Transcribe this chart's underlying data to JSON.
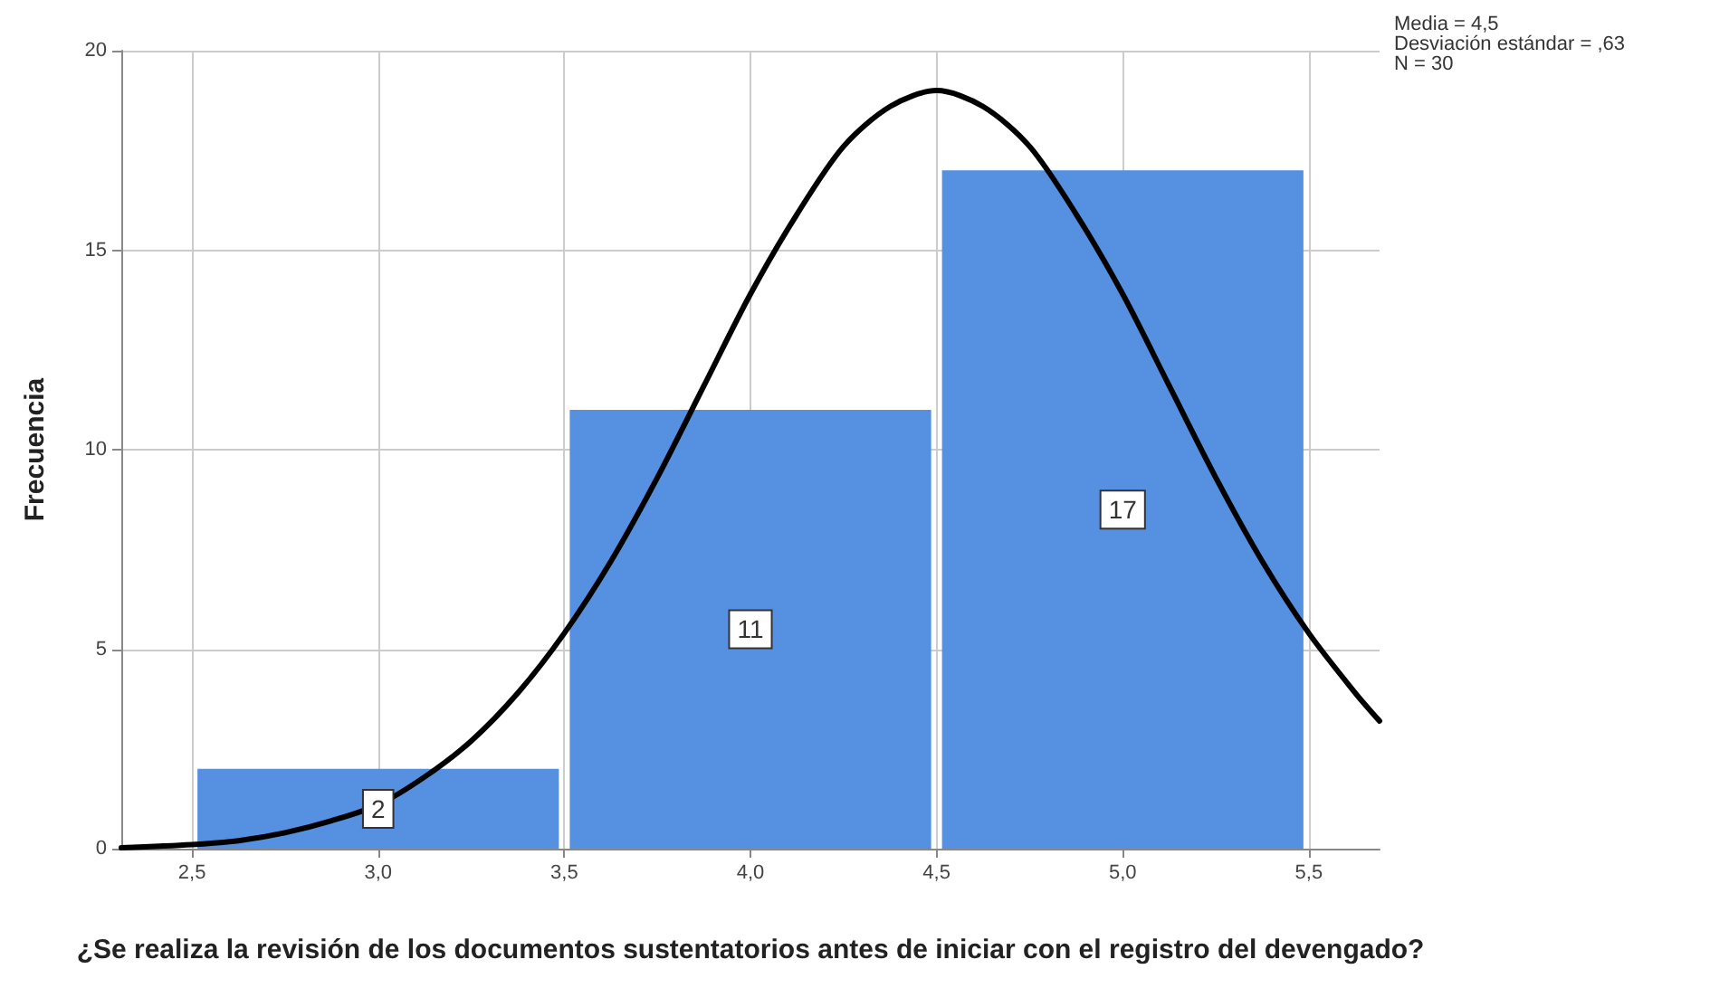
{
  "chart_data": {
    "type": "histogram",
    "xlabel": "¿Se realiza la revisión de los documentos sustentatorios antes de iniciar con el registro del devengado?",
    "ylabel": "Frecuencia",
    "bins": [
      2.5,
      3.5,
      4.5,
      5.5
    ],
    "values": [
      2,
      11,
      17
    ],
    "color": "#5591e0",
    "value_labels": [
      "2",
      "11",
      "17"
    ],
    "series": [
      {
        "type": "line",
        "color": "#000000",
        "x": [
          2.31,
          2.5,
          2.625,
          2.75,
          2.875,
          3.0,
          3.125,
          3.25,
          3.375,
          3.5,
          3.625,
          3.75,
          3.875,
          4.0,
          4.125,
          4.25,
          4.375,
          4.5,
          4.625,
          4.75,
          4.875,
          5.0,
          5.125,
          5.25,
          5.375,
          5.5,
          5.625,
          5.69
        ],
        "values": [
          0.02,
          0.1,
          0.2,
          0.4,
          0.7,
          1.1,
          1.8,
          2.7,
          3.9,
          5.4,
          7.2,
          9.3,
          11.6,
          13.9,
          15.9,
          17.6,
          18.6,
          19.0,
          18.6,
          17.6,
          15.9,
          13.9,
          11.6,
          9.3,
          7.2,
          5.4,
          3.9,
          3.2
        ]
      }
    ],
    "xlim": [
      2.31,
      5.69
    ],
    "xticks": [
      {
        "value": 2.5,
        "label": "2,5"
      },
      {
        "value": 3.0,
        "label": "3,0"
      },
      {
        "value": 3.5,
        "label": "3,5"
      },
      {
        "value": 4.0,
        "label": "4,0"
      },
      {
        "value": 4.5,
        "label": "4,5"
      },
      {
        "value": 5.0,
        "label": "5,0"
      },
      {
        "value": 5.5,
        "label": "5,5"
      }
    ],
    "ylim": [
      0,
      20
    ],
    "yticks": [
      0,
      5,
      10,
      15,
      20
    ],
    "grid": true,
    "marker": "none",
    "line_style": "solid",
    "annotations": [
      "Media = 4,5",
      "Desviación estándar = ,63",
      "N = 30"
    ]
  }
}
